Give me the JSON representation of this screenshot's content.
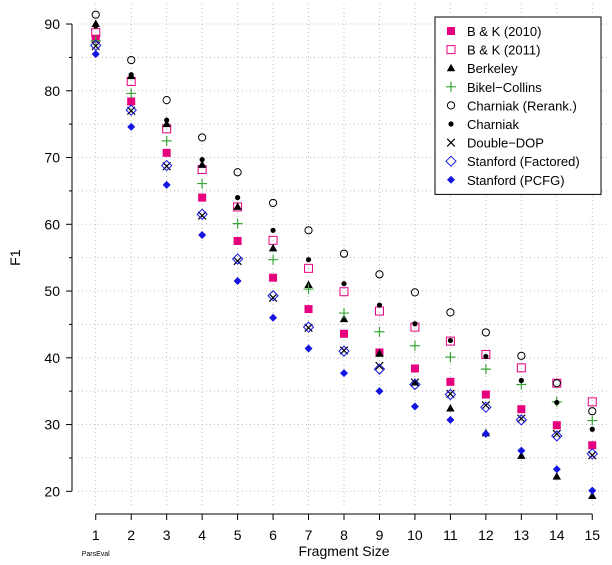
{
  "chart_data": {
    "type": "scatter",
    "xlabel": "Fragment Size",
    "ylabel": "F1",
    "x": [
      1,
      2,
      3,
      4,
      5,
      6,
      7,
      8,
      9,
      10,
      11,
      12,
      13,
      14,
      15
    ],
    "xlim": [
      0.5,
      15.5
    ],
    "ylim": [
      17.5,
      93
    ],
    "x_ticks": [
      1,
      2,
      3,
      4,
      5,
      6,
      7,
      8,
      9,
      10,
      11,
      12,
      13,
      14,
      15
    ],
    "y_ticks": [
      20,
      30,
      40,
      50,
      60,
      70,
      80,
      90
    ],
    "x_sublabel": {
      "x": 1,
      "text": "ParsEval"
    },
    "grid": true,
    "legend_position": "top-right",
    "series": [
      {
        "name": "B & K (2010)",
        "color": "#e6007e",
        "marker": "square-filled",
        "values": [
          87.8,
          78.4,
          70.7,
          64.0,
          57.5,
          52.0,
          47.3,
          43.6,
          40.8,
          38.4,
          36.4,
          34.5,
          32.3,
          29.9,
          26.9
        ]
      },
      {
        "name": "B & K (2011)",
        "color": "#e6007e",
        "marker": "square-open",
        "values": [
          88.7,
          81.4,
          74.3,
          68.2,
          62.6,
          57.6,
          53.4,
          49.9,
          47.0,
          44.6,
          42.5,
          40.5,
          38.5,
          36.2,
          33.4
        ]
      },
      {
        "name": "Berkeley",
        "color": "#000000",
        "marker": "triangle-filled",
        "values": [
          90.0,
          82.2,
          75.0,
          68.9,
          62.6,
          56.4,
          50.9,
          45.8,
          40.6,
          36.3,
          32.4,
          28.7,
          25.3,
          22.2,
          19.3
        ]
      },
      {
        "name": "Bikel−Collins",
        "color": "#3aa63a",
        "marker": "plus",
        "values": [
          87.5,
          79.6,
          72.5,
          66.1,
          60.1,
          54.7,
          50.3,
          46.7,
          43.9,
          41.8,
          40.1,
          38.3,
          36.0,
          33.4,
          30.6
        ]
      },
      {
        "name": "Charniak (Rerank.)",
        "color": "#000000",
        "marker": "circle-open",
        "values": [
          91.4,
          84.6,
          78.6,
          73.0,
          67.8,
          63.2,
          59.1,
          55.6,
          52.5,
          49.8,
          46.8,
          43.8,
          40.3,
          36.2,
          32.0
        ]
      },
      {
        "name": "Charniak",
        "color": "#000000",
        "marker": "circle-filled",
        "values": [
          89.7,
          82.4,
          75.6,
          69.7,
          64.0,
          59.1,
          54.7,
          51.1,
          47.9,
          45.1,
          42.6,
          40.2,
          36.6,
          33.3,
          29.3
        ]
      },
      {
        "name": "Double−DOP",
        "color": "#000000",
        "marker": "cross",
        "values": [
          86.7,
          77.0,
          68.7,
          61.3,
          54.5,
          49.0,
          44.5,
          41.1,
          38.8,
          36.3,
          34.6,
          32.9,
          30.9,
          28.6,
          25.4
        ]
      },
      {
        "name": "Stanford (Factored)",
        "color": "#1515e0",
        "marker": "diamond-open",
        "values": [
          86.8,
          77.1,
          68.8,
          61.5,
          54.8,
          49.3,
          44.6,
          41.0,
          38.3,
          36.0,
          34.5,
          32.6,
          30.7,
          28.3,
          25.6
        ]
      },
      {
        "name": "Stanford (PCFG)",
        "color": "#1515e0",
        "marker": "diamond-filled",
        "values": [
          85.5,
          74.6,
          65.9,
          58.4,
          51.5,
          46.0,
          41.4,
          37.7,
          35.0,
          32.7,
          30.7,
          28.6,
          26.1,
          23.3,
          20.1
        ]
      }
    ]
  }
}
